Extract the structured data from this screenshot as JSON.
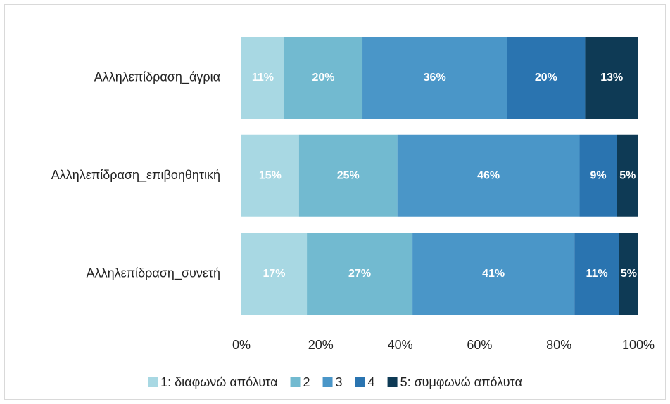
{
  "chart_data": {
    "type": "stacked-bar-horizontal",
    "categories": [
      "Αλληλεπίδραση_άγρια",
      "Αλληλεπίδραση_επιβοηθητική",
      "Αλληλεπίδραση_συνετή"
    ],
    "series": [
      {
        "name": "1: διαφωνώ απόλυτα",
        "color": "#a8d8e3",
        "values": [
          10.8,
          14.5,
          16.5
        ],
        "value_labels": [
          "11%",
          "15%",
          "17%"
        ]
      },
      {
        "name": "2",
        "color": "#72bad0",
        "values": [
          19.7,
          24.8,
          26.6
        ],
        "value_labels": [
          "20%",
          "25%",
          "27%"
        ]
      },
      {
        "name": "3",
        "color": "#4a96c8",
        "values": [
          36.4,
          45.9,
          40.8
        ],
        "value_labels": [
          "36%",
          "46%",
          "41%"
        ]
      },
      {
        "name": "4",
        "color": "#2a74b0",
        "values": [
          19.7,
          9.4,
          11.3
        ],
        "value_labels": [
          "20%",
          "9%",
          "11%"
        ]
      },
      {
        "name": "5: συμφωνώ απόλυτα",
        "color": "#0e3a55",
        "values": [
          13.4,
          5.4,
          4.8
        ],
        "value_labels": [
          "13%",
          "5%",
          "5%"
        ]
      }
    ],
    "xlim": [
      0,
      100
    ],
    "xticks": [
      {
        "value": 0,
        "label": "0%"
      },
      {
        "value": 20,
        "label": "20%"
      },
      {
        "value": 40,
        "label": "40%"
      },
      {
        "value": 60,
        "label": "60%"
      },
      {
        "value": 80,
        "label": "80%"
      },
      {
        "value": 100,
        "label": "100%"
      }
    ],
    "legend": "bottom"
  }
}
